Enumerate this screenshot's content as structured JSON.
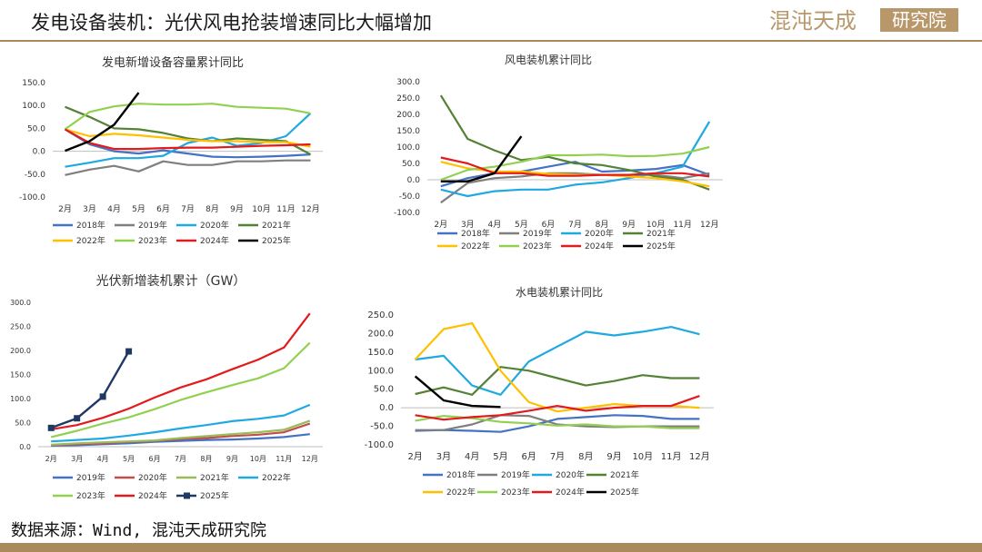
{
  "header": {
    "title": "发电设备装机：光伏风电抢装增速同比大幅增加",
    "brand_main": "混沌天成",
    "brand_box": "研究院",
    "accent_color": "#a88a5c"
  },
  "source": "数据来源：Wind, 混沌天成研究院",
  "chart_data": [
    {
      "type": "line",
      "title": "发电新增设备容量累计同比",
      "categories": [
        "2月",
        "3月",
        "4月",
        "5月",
        "6月",
        "7月",
        "8月",
        "9月",
        "10月",
        "11月",
        "12月"
      ],
      "ylim": [
        -100,
        150
      ],
      "yticks": [
        "150.0",
        "100.0",
        "50.0",
        "0.0",
        "-50.0",
        "-100.0"
      ],
      "yticks_values": [
        150,
        100,
        50,
        0,
        -50,
        -100
      ],
      "series": [
        {
          "name": "2018年",
          "color": "#4472c4",
          "values": [
            48,
            15,
            0,
            -5,
            2,
            -5,
            -12,
            -13,
            -12,
            -10,
            -7
          ]
        },
        {
          "name": "2019年",
          "color": "#7f7f7f",
          "values": [
            -52,
            -40,
            -32,
            -44,
            -22,
            -30,
            -30,
            -22,
            -22,
            -20,
            -20
          ]
        },
        {
          "name": "2020年",
          "color": "#1fa9e1",
          "values": [
            -34,
            -25,
            -15,
            -15,
            -10,
            18,
            30,
            12,
            18,
            33,
            83
          ]
        },
        {
          "name": "2021年",
          "color": "#548235",
          "values": [
            97,
            75,
            50,
            48,
            40,
            28,
            22,
            28,
            25,
            22,
            -7
          ]
        },
        {
          "name": "2022年",
          "color": "#ffc000",
          "values": [
            48,
            33,
            38,
            35,
            30,
            25,
            22,
            22,
            20,
            20,
            10
          ]
        },
        {
          "name": "2023年",
          "color": "#92d050",
          "values": [
            48,
            86,
            98,
            104,
            102,
            102,
            104,
            97,
            95,
            93,
            83
          ]
        },
        {
          "name": "2024年",
          "color": "#e31a1c",
          "values": [
            48,
            18,
            5,
            5,
            7,
            8,
            8,
            10,
            12,
            13,
            15
          ]
        },
        {
          "name": "2025年",
          "color": "#000000",
          "values": [
            1,
            22,
            58,
            128,
            null,
            null,
            null,
            null,
            null,
            null,
            null
          ]
        }
      ]
    },
    {
      "type": "line",
      "title": "风电装机累计同比",
      "categories": [
        "2月",
        "3月",
        "4月",
        "5月",
        "6月",
        "7月",
        "8月",
        "9月",
        "10月",
        "11月",
        "12月"
      ],
      "ylim": [
        -100,
        300
      ],
      "yticks": [
        "300.0",
        "250.0",
        "200.0",
        "150.0",
        "100.0",
        "50.0",
        "0.0",
        "-50.0",
        "-100.0"
      ],
      "yticks_values": [
        300,
        250,
        200,
        150,
        100,
        50,
        0,
        -50,
        -100
      ],
      "series": [
        {
          "name": "2018年",
          "color": "#4472c4",
          "values": [
            -20,
            5,
            20,
            25,
            40,
            55,
            25,
            28,
            33,
            45,
            15
          ]
        },
        {
          "name": "2019年",
          "color": "#7f7f7f",
          "values": [
            -70,
            -10,
            5,
            10,
            20,
            20,
            15,
            15,
            15,
            5,
            20
          ]
        },
        {
          "name": "2020年",
          "color": "#1fa9e1",
          "values": [
            -30,
            -50,
            -35,
            -30,
            -30,
            -15,
            -8,
            5,
            20,
            40,
            178
          ]
        },
        {
          "name": "2021年",
          "color": "#548235",
          "values": [
            258,
            125,
            90,
            60,
            70,
            50,
            45,
            30,
            10,
            0,
            -30
          ]
        },
        {
          "name": "2022年",
          "color": "#ffc000",
          "values": [
            55,
            35,
            25,
            25,
            18,
            15,
            15,
            10,
            5,
            -5,
            -20
          ]
        },
        {
          "name": "2023年",
          "color": "#92d050",
          "values": [
            0,
            30,
            40,
            55,
            75,
            75,
            77,
            72,
            73,
            80,
            100
          ]
        },
        {
          "name": "2024年",
          "color": "#e31a1c",
          "values": [
            68,
            50,
            20,
            20,
            12,
            12,
            15,
            15,
            20,
            20,
            10
          ]
        },
        {
          "name": "2025年",
          "color": "#000000",
          "values": [
            -5,
            -5,
            20,
            133,
            null,
            null,
            null,
            null,
            null,
            null,
            null
          ]
        }
      ]
    },
    {
      "type": "line",
      "title": "光伏新增装机累计（GW）",
      "categories": [
        "2月",
        "3月",
        "4月",
        "5月",
        "6月",
        "7月",
        "8月",
        "9月",
        "10月",
        "11月",
        "12月"
      ],
      "ylim": [
        0,
        300
      ],
      "yticks": [
        "300.0",
        "250.0",
        "200.0",
        "150.0",
        "100.0",
        "50.0",
        "0.0"
      ],
      "yticks_values": [
        300,
        250,
        200,
        150,
        100,
        50,
        0
      ],
      "series": [
        {
          "name": "2019年",
          "color": "#4472c4",
          "values": [
            2,
            3,
            5,
            7,
            10,
            12,
            14,
            15,
            17,
            20,
            26
          ]
        },
        {
          "name": "2020年",
          "color": "#c0504d",
          "values": [
            3,
            5,
            7,
            10,
            12,
            16,
            18,
            22,
            25,
            30,
            48
          ]
        },
        {
          "name": "2021年",
          "color": "#9bbb59",
          "values": [
            4,
            7,
            9,
            11,
            13,
            18,
            22,
            26,
            30,
            35,
            54
          ]
        },
        {
          "name": "2022年",
          "color": "#1fa9e1",
          "values": [
            11,
            14,
            17,
            23,
            30,
            38,
            45,
            53,
            58,
            65,
            87
          ]
        },
        {
          "name": "2023年",
          "color": "#92d050",
          "values": [
            20,
            33,
            48,
            61,
            78,
            97,
            113,
            128,
            142,
            163,
            216
          ]
        },
        {
          "name": "2024年",
          "color": "#e31a1c",
          "values": [
            36,
            45,
            60,
            79,
            102,
            123,
            140,
            161,
            181,
            206,
            277
          ]
        },
        {
          "name": "2025年",
          "color": "#1f3864",
          "marker": "square",
          "values": [
            39,
            59,
            104,
            198,
            null,
            null,
            null,
            null,
            null,
            null,
            null
          ]
        }
      ]
    },
    {
      "type": "line",
      "title": "水电装机累计同比",
      "categories": [
        "2月",
        "3月",
        "4月",
        "5月",
        "6月",
        "7月",
        "8月",
        "9月",
        "10月",
        "11月",
        "12月"
      ],
      "ylim": [
        -100,
        250
      ],
      "yticks": [
        "250.0",
        "200.0",
        "150.0",
        "100.0",
        "50.0",
        "0.0",
        "-50.0",
        "-100.0"
      ],
      "yticks_values": [
        250,
        200,
        150,
        100,
        50,
        0,
        -50,
        -100
      ],
      "series": [
        {
          "name": "2018年",
          "color": "#4472c4",
          "values": [
            -62,
            -60,
            -62,
            -65,
            -50,
            -30,
            -25,
            -20,
            -22,
            -30,
            -30
          ]
        },
        {
          "name": "2019年",
          "color": "#7f7f7f",
          "values": [
            -60,
            -60,
            -45,
            -20,
            -22,
            -45,
            -50,
            -52,
            -50,
            -50,
            -50
          ]
        },
        {
          "name": "2020年",
          "color": "#1fa9e1",
          "values": [
            130,
            140,
            60,
            35,
            125,
            165,
            205,
            195,
            205,
            218,
            198
          ]
        },
        {
          "name": "2021年",
          "color": "#548235",
          "values": [
            37,
            55,
            35,
            110,
            100,
            80,
            60,
            72,
            88,
            80,
            80
          ]
        },
        {
          "name": "2022年",
          "color": "#ffc000",
          "values": [
            130,
            212,
            228,
            100,
            15,
            -10,
            0,
            10,
            5,
            5,
            0
          ]
        },
        {
          "name": "2023年",
          "color": "#92d050",
          "values": [
            -35,
            -22,
            -28,
            -38,
            -42,
            -48,
            -45,
            -50,
            -50,
            -55,
            -55
          ]
        },
        {
          "name": "2024年",
          "color": "#e31a1c",
          "values": [
            -20,
            -32,
            -25,
            -20,
            -8,
            5,
            -8,
            0,
            5,
            5,
            32
          ]
        },
        {
          "name": "2025年",
          "color": "#000000",
          "values": [
            85,
            20,
            5,
            2,
            null,
            null,
            null,
            null,
            null,
            null,
            null
          ]
        }
      ]
    }
  ]
}
